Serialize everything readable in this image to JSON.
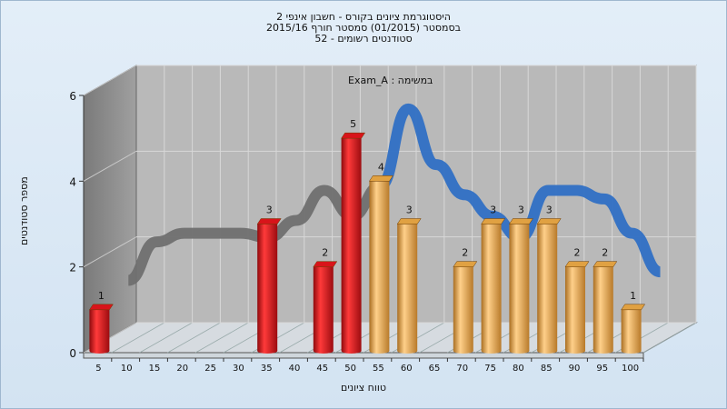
{
  "header": {
    "line1": "היסטוגרמת ציונים בקורס - חשבון אינפי 2",
    "line2": "בסמסטר  (01/2015)  סמסטר חורף 2015/16",
    "line3": "סטודנטים רשומים - 52"
  },
  "chart_data": {
    "type": "bar",
    "title": "היסטוגרמת ציונים בקורס - חשבון אינפי 2",
    "subtitle": "במשימה : Exam_A",
    "xlabel": "טווח ציונים",
    "ylabel": "מספר סטודנטים",
    "ylim": [
      0,
      6
    ],
    "yticks": [
      "0",
      "2",
      "4",
      "6"
    ],
    "grid": true,
    "categories": [
      "5",
      "10",
      "15",
      "20",
      "25",
      "30",
      "35",
      "40",
      "45",
      "50",
      "55",
      "60",
      "65",
      "70",
      "75",
      "80",
      "85",
      "90",
      "95",
      "100"
    ],
    "values": [
      1,
      0,
      0,
      0,
      0,
      0,
      3,
      0,
      2,
      5,
      4,
      3,
      0,
      2,
      3,
      3,
      3,
      2,
      2,
      1
    ],
    "bar_colors": {
      "fail": "#d8141a",
      "pass": "#e0a142"
    },
    "trend_line": [
      1.3,
      2.2,
      2.4,
      2.4,
      2.4,
      2.3,
      2.7,
      3.4,
      2.8,
      3.5,
      5.3,
      4.0,
      3.3,
      2.8,
      2.3,
      3.4,
      3.4,
      3.2,
      2.4,
      1.5
    ],
    "trend_colors": {
      "low": "#6f6f6f",
      "high": "#2f6fc4"
    }
  }
}
